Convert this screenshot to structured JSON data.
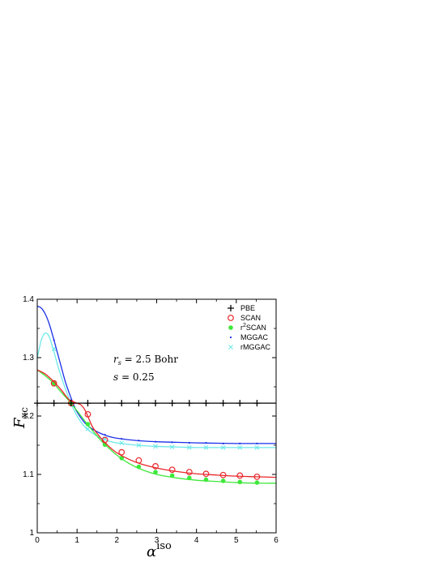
{
  "chart_data": {
    "type": "line",
    "title": "",
    "xlabel": "α",
    "xlabel_superscript": "iso",
    "ylabel": "F",
    "ylabel_subscript": "xc",
    "xlim": [
      0,
      6
    ],
    "ylim": [
      1.0,
      1.4
    ],
    "x_ticks": [
      "0",
      "1",
      "2",
      "3",
      "4",
      "5",
      "6"
    ],
    "y_ticks": [
      "1",
      "1.1",
      "1.2",
      "1.3",
      "1.4"
    ],
    "grid": false,
    "legend_position": "top-right",
    "annotations": [
      {
        "text": "r_s = 2.5 Bohr",
        "pre": "r",
        "sub": "s",
        "post": " = 2.5 Bohr"
      },
      {
        "text": "s = 0.25"
      }
    ],
    "series": [
      {
        "name": "PBE",
        "marker": "plus",
        "color": "#000000",
        "x": [
          0,
          1,
          2,
          3,
          4,
          5,
          6
        ],
        "y": [
          1.222,
          1.222,
          1.222,
          1.222,
          1.222,
          1.222,
          1.222
        ],
        "marker_x": [
          0,
          0.42,
          0.85,
          1.27,
          1.7,
          2.12,
          2.55,
          2.97,
          3.39,
          3.82,
          4.24,
          4.67,
          5.09,
          5.52
        ]
      },
      {
        "name": "SCAN",
        "marker": "open-circle",
        "color": "#e8262a",
        "x": [
          0,
          0.2,
          0.4,
          0.6,
          0.8,
          1.0,
          1.1,
          1.2,
          1.3,
          1.4,
          1.6,
          1.8,
          2.0,
          2.3,
          2.6,
          3.0,
          3.5,
          4.0,
          4.5,
          5.0,
          5.5,
          6.0
        ],
        "y": [
          1.279,
          1.272,
          1.26,
          1.245,
          1.228,
          1.222,
          1.219,
          1.21,
          1.195,
          1.18,
          1.162,
          1.148,
          1.137,
          1.126,
          1.118,
          1.111,
          1.105,
          1.101,
          1.099,
          1.097,
          1.096,
          1.095
        ],
        "marker_x": [
          0.42,
          0.85,
          1.27,
          1.7,
          2.12,
          2.55,
          2.97,
          3.39,
          3.82,
          4.24,
          4.67,
          5.09,
          5.52
        ],
        "marker_y": [
          1.256,
          1.222,
          1.203,
          1.159,
          1.138,
          1.124,
          1.114,
          1.108,
          1.104,
          1.101,
          1.099,
          1.098,
          1.096
        ]
      },
      {
        "name": "r²SCAN",
        "label_pre": "r",
        "label_sup": "2",
        "label_post": "SCAN",
        "marker": "filled-circle",
        "color": "#3ee83a",
        "x": [
          0,
          0.2,
          0.4,
          0.6,
          0.8,
          1.0,
          1.2,
          1.4,
          1.6,
          1.8,
          2.0,
          2.3,
          2.6,
          3.0,
          3.5,
          4.0,
          4.5,
          5.0,
          5.5,
          6.0
        ],
        "y": [
          1.279,
          1.269,
          1.257,
          1.241,
          1.226,
          1.209,
          1.191,
          1.174,
          1.158,
          1.145,
          1.133,
          1.119,
          1.109,
          1.1,
          1.094,
          1.09,
          1.088,
          1.086,
          1.085,
          1.085
        ],
        "marker_x": [
          0.42,
          0.85,
          1.27,
          1.7,
          2.12,
          2.55,
          2.97,
          3.39,
          3.82,
          4.24,
          4.67,
          5.09,
          5.52
        ],
        "marker_y": [
          1.256,
          1.222,
          1.186,
          1.151,
          1.128,
          1.113,
          1.104,
          1.098,
          1.094,
          1.091,
          1.089,
          1.087,
          1.086
        ]
      },
      {
        "name": "MGGAC",
        "marker": "dot",
        "color": "#1a2fe8",
        "x": [
          0,
          0.1,
          0.2,
          0.3,
          0.4,
          0.5,
          0.6,
          0.7,
          0.8,
          0.9,
          1.0,
          1.2,
          1.4,
          1.6,
          1.8,
          2.0,
          2.5,
          3.0,
          3.5,
          4.0,
          5.0,
          6.0
        ],
        "y": [
          1.388,
          1.385,
          1.375,
          1.358,
          1.335,
          1.31,
          1.285,
          1.26,
          1.24,
          1.222,
          1.207,
          1.188,
          1.177,
          1.17,
          1.165,
          1.162,
          1.158,
          1.156,
          1.155,
          1.154,
          1.153,
          1.153
        ],
        "marker_x": [
          0.42,
          0.85,
          1.27,
          1.7,
          2.12,
          2.55,
          2.97,
          3.39,
          3.82,
          4.24,
          4.67,
          5.09,
          5.52
        ],
        "marker_y": [
          1.33,
          1.227,
          1.184,
          1.168,
          1.161,
          1.158,
          1.156,
          1.155,
          1.154,
          1.154,
          1.153,
          1.153,
          1.153
        ]
      },
      {
        "name": "rMGGAC",
        "marker": "x",
        "color": "#6ee8e8",
        "x": [
          0,
          0.05,
          0.1,
          0.15,
          0.2,
          0.25,
          0.3,
          0.4,
          0.5,
          0.6,
          0.7,
          0.8,
          0.9,
          1.0,
          1.2,
          1.4,
          1.6,
          1.8,
          2.0,
          2.5,
          3.0,
          3.5,
          4.0,
          5.0,
          6.0
        ],
        "y": [
          1.3,
          1.315,
          1.33,
          1.338,
          1.342,
          1.341,
          1.336,
          1.315,
          1.29,
          1.268,
          1.248,
          1.23,
          1.214,
          1.2,
          1.181,
          1.17,
          1.162,
          1.157,
          1.154,
          1.15,
          1.148,
          1.147,
          1.146,
          1.146,
          1.146
        ],
        "marker_x": [
          0.42,
          0.85,
          1.27,
          1.7,
          2.12,
          2.55,
          2.97,
          3.39,
          3.82,
          4.24,
          4.67,
          5.09,
          5.52
        ],
        "marker_y": [
          1.315,
          1.222,
          1.178,
          1.161,
          1.154,
          1.15,
          1.148,
          1.147,
          1.146,
          1.146,
          1.146,
          1.146,
          1.146
        ]
      }
    ]
  }
}
